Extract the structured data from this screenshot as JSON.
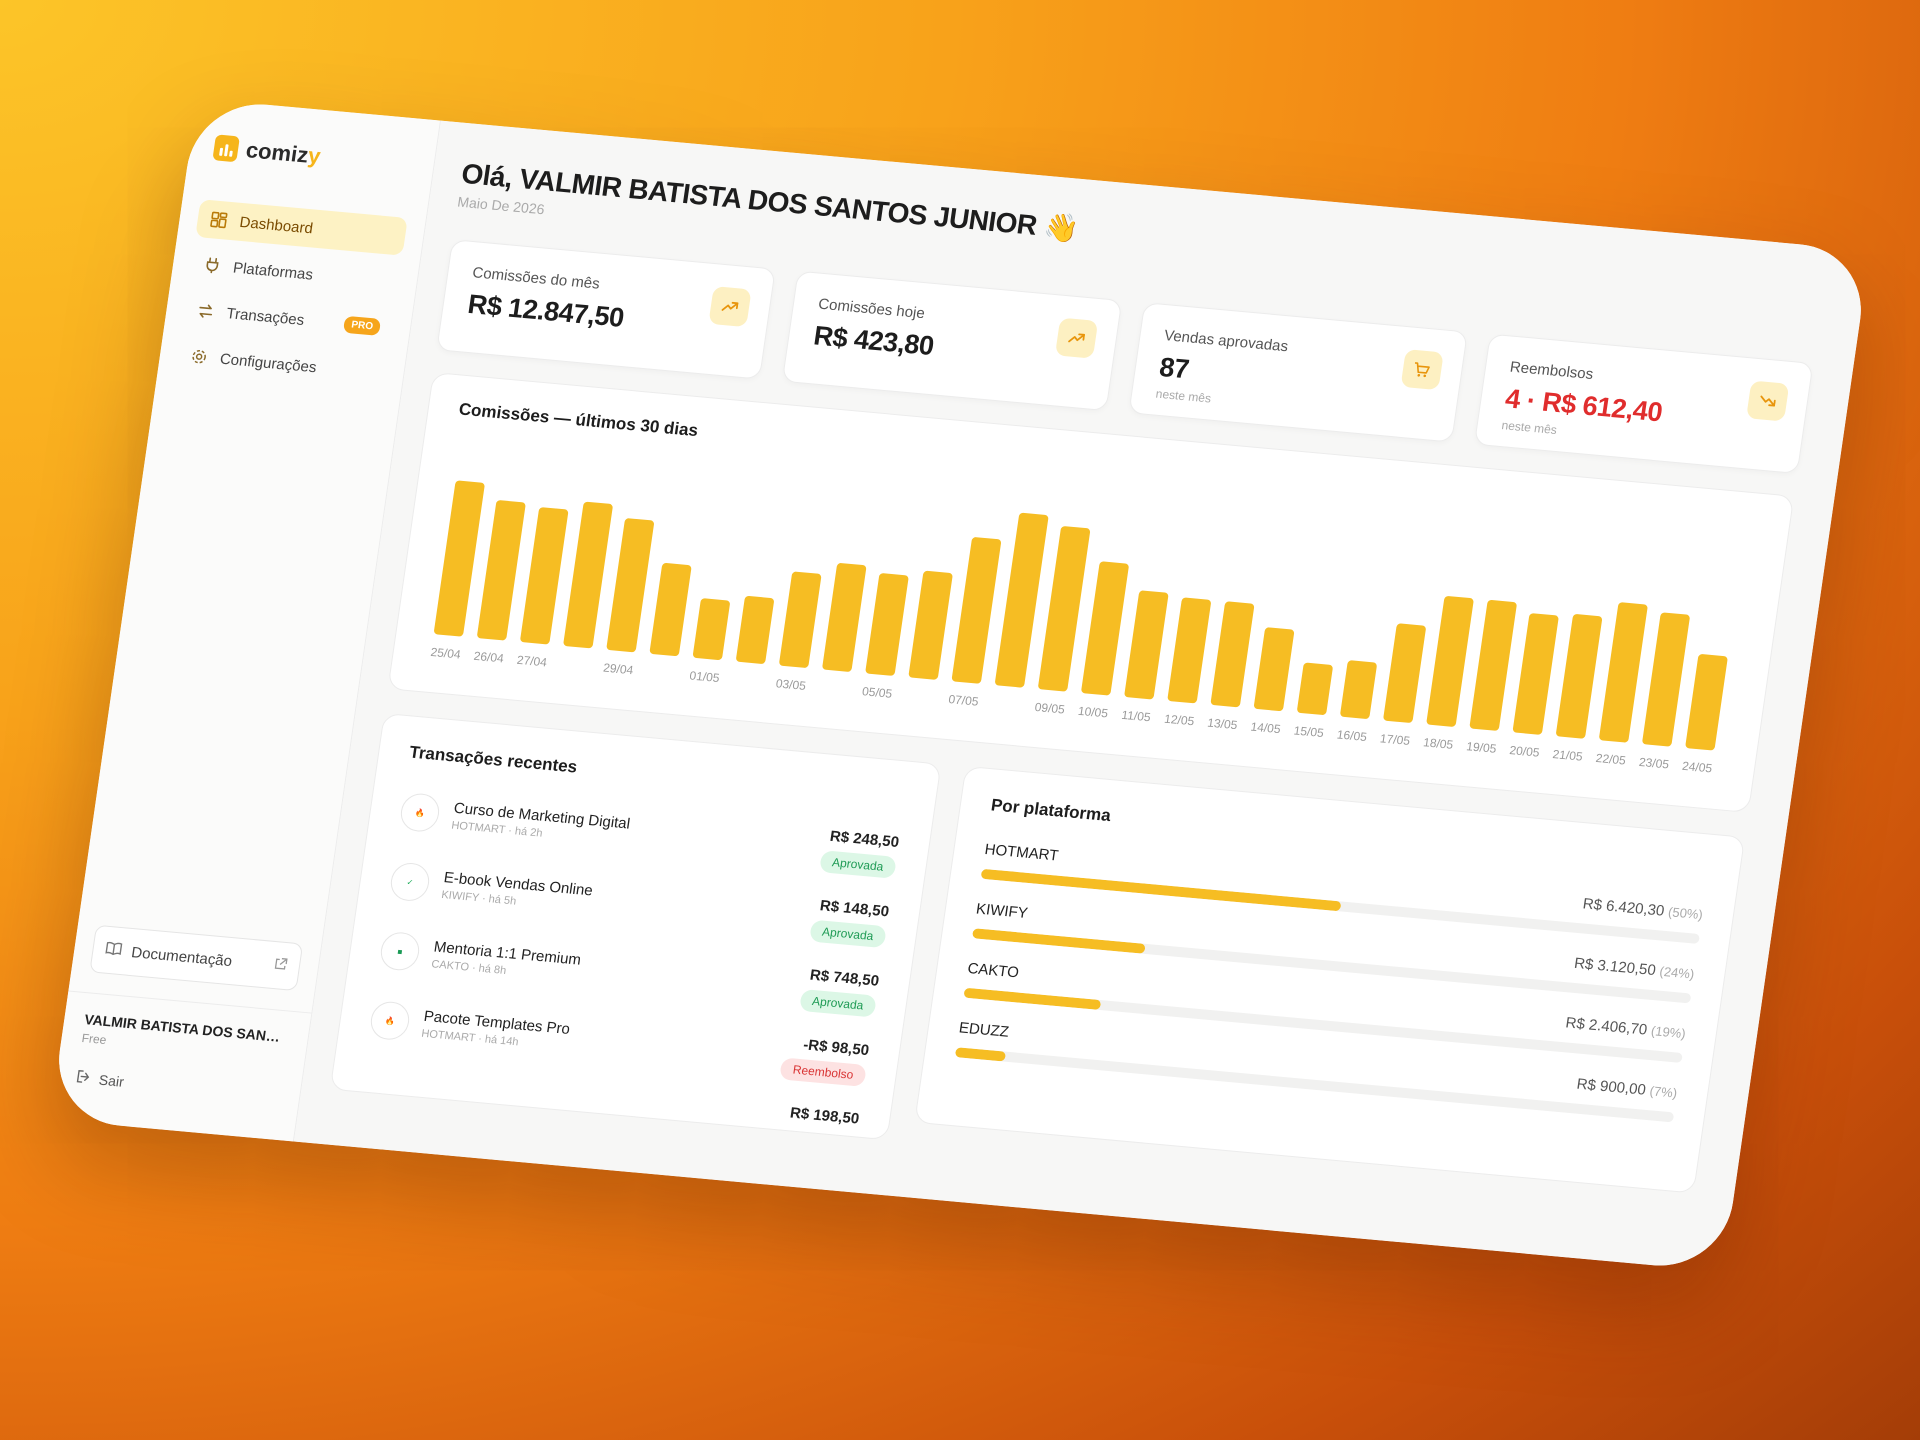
{
  "brand": {
    "name_main": "comiz",
    "name_accent": "y"
  },
  "sidebar": {
    "items": [
      {
        "label": "Dashboard",
        "icon": "grid-icon",
        "active": true
      },
      {
        "label": "Plataformas",
        "icon": "plug-icon"
      },
      {
        "label": "Transações",
        "icon": "arrows-icon",
        "badge": "PRO"
      },
      {
        "label": "Configurações",
        "icon": "gear-icon"
      }
    ],
    "docs_label": "Documentação",
    "user_name": "VALMIR BATISTA DOS SANTO...",
    "user_plan": "Free",
    "logout_label": "Sair"
  },
  "header": {
    "greeting": "Olá, VALMIR BATISTA DOS SANTOS JUNIOR 👋",
    "date": "Maio De 2026"
  },
  "kpis": [
    {
      "label": "Comissões do mês",
      "value": "R$ 12.847,50",
      "sub": "",
      "icon": "trend-up-icon"
    },
    {
      "label": "Comissões hoje",
      "value": "R$ 423,80",
      "sub": "",
      "icon": "trend-up-icon"
    },
    {
      "label": "Vendas aprovadas",
      "value": "87",
      "sub": "neste mês",
      "icon": "cart-icon"
    },
    {
      "label": "Reembolsos",
      "value": "4 · R$ 612,40",
      "sub": "neste mês",
      "icon": "trend-down-icon"
    }
  ],
  "chart_card": {
    "title": "Comissões — últimos 30 dias"
  },
  "chart_data": {
    "type": "bar",
    "title": "Comissões — últimos 30 dias",
    "categories": [
      "25/04",
      "26/04",
      "27/04",
      "28/04",
      "29/04",
      "30/04",
      "01/05",
      "02/05",
      "03/05",
      "04/05",
      "05/05",
      "06/05",
      "07/05",
      "08/05",
      "09/05",
      "10/05",
      "11/05",
      "12/05",
      "13/05",
      "14/05",
      "15/05",
      "16/05",
      "17/05",
      "18/05",
      "19/05",
      "20/05",
      "21/05",
      "22/05",
      "23/05",
      "24/05"
    ],
    "tick_labels": [
      "25/04",
      "26/04",
      "27/04",
      "",
      "29/04",
      "",
      "01/05",
      "",
      "03/05",
      "",
      "05/05",
      "",
      "07/05",
      "",
      "09/05",
      "10/05",
      "11/05",
      "12/05",
      "13/05",
      "14/05",
      "15/05",
      "16/05",
      "17/05",
      "18/05",
      "19/05",
      "20/05",
      "21/05",
      "22/05",
      "23/05",
      "24/05"
    ],
    "values": [
      98,
      88,
      86,
      92,
      84,
      58,
      38,
      42,
      60,
      68,
      64,
      68,
      92,
      110,
      104,
      84,
      68,
      66,
      66,
      52,
      32,
      36,
      62,
      82,
      82,
      76,
      78,
      88,
      84,
      60
    ],
    "ylim": [
      0,
      120
    ],
    "color": "#f6bd23"
  },
  "transactions": {
    "title": "Transações recentes",
    "items": [
      {
        "name": "Curso de Marketing Digital",
        "meta": "HOTMART · há 2h",
        "logo": "hotmart",
        "amount": "R$ 248,50",
        "status": "Aprovada",
        "kind": "ok"
      },
      {
        "name": "E-book Vendas Online",
        "meta": "KIWIFY · há 5h",
        "logo": "kiwify",
        "amount": "R$ 148,50",
        "status": "Aprovada",
        "kind": "ok"
      },
      {
        "name": "Mentoria 1:1 Premium",
        "meta": "CAKTO · há 8h",
        "logo": "cakto",
        "amount": "R$ 748,50",
        "status": "Aprovada",
        "kind": "ok"
      },
      {
        "name": "Pacote Templates Pro",
        "meta": "HOTMART · há 14h",
        "logo": "hotmart",
        "amount": "-R$ 98,50",
        "status": "Reembolso",
        "kind": "ref"
      }
    ],
    "peek_amount": "R$ 198,50"
  },
  "platforms": {
    "title": "Por plataforma",
    "items": [
      {
        "name": "HOTMART",
        "value": "R$ 6.420,30",
        "pct": "(50%)",
        "share": 0.5
      },
      {
        "name": "KIWIFY",
        "value": "R$ 3.120,50",
        "pct": "(24%)",
        "share": 0.24
      },
      {
        "name": "CAKTO",
        "value": "R$ 2.406,70",
        "pct": "(19%)",
        "share": 0.19
      },
      {
        "name": "EDUZZ",
        "value": "R$ 900,00",
        "pct": "(7%)",
        "share": 0.07
      }
    ]
  }
}
